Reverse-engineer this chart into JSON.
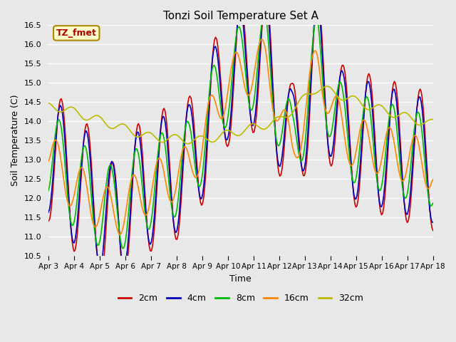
{
  "title": "Tonzi Soil Temperature Set A",
  "xlabel": "Time",
  "ylabel": "Soil Temperature (C)",
  "ylim": [
    10.5,
    16.5
  ],
  "annotation": "TZ_fmet",
  "plot_bg": "#e8e8e8",
  "fig_bg": "#e8e8e8",
  "grid_color": "white",
  "legend_labels": [
    "2cm",
    "4cm",
    "8cm",
    "16cm",
    "32cm"
  ],
  "line_colors": [
    "#cc0000",
    "#0000bb",
    "#00bb00",
    "#ff8800",
    "#bbbb00"
  ],
  "xtick_labels": [
    "Apr 3",
    "Apr 4",
    "Apr 5",
    "Apr 6",
    "Apr 7",
    "Apr 8",
    "Apr 9",
    "Apr 10",
    "Apr 11",
    "Apr 12",
    "Apr 13",
    "Apr 14",
    "Apr 15",
    "Apr 16",
    "Apr 17",
    "Apr 18"
  ],
  "line_width": 1.2
}
